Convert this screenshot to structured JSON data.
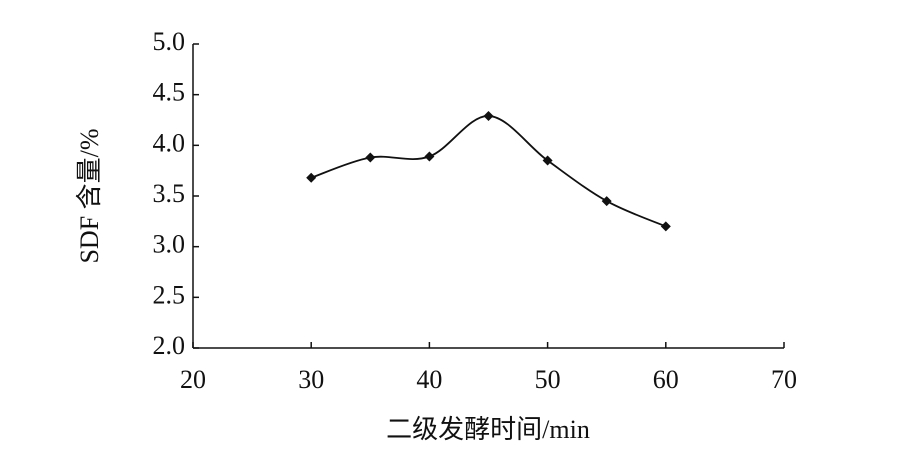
{
  "chart_data": {
    "type": "line",
    "x_label": "二级发酵时间/min",
    "y_label": "SDF 含量/%",
    "x": [
      30,
      35,
      40,
      45,
      50,
      55,
      60
    ],
    "series": [
      {
        "color": "#111111",
        "values": [
          3.68,
          3.88,
          3.89,
          4.29,
          3.85,
          3.45,
          3.2
        ]
      }
    ],
    "xlim": [
      20,
      70
    ],
    "xticks": [
      20,
      30,
      40,
      50,
      60,
      70
    ],
    "ylim": [
      2.0,
      5.0
    ],
    "yticks": [
      {
        "value": 2.0,
        "label": "2.0"
      },
      {
        "value": 2.5,
        "label": "2.5"
      },
      {
        "value": 3.0,
        "label": "3.0"
      },
      {
        "value": 3.5,
        "label": "3.5"
      },
      {
        "value": 4.0,
        "label": "4.0"
      },
      {
        "value": 4.5,
        "label": "4.5"
      },
      {
        "value": 5.0,
        "label": "5.0"
      }
    ],
    "smooth": true,
    "markers": true
  }
}
